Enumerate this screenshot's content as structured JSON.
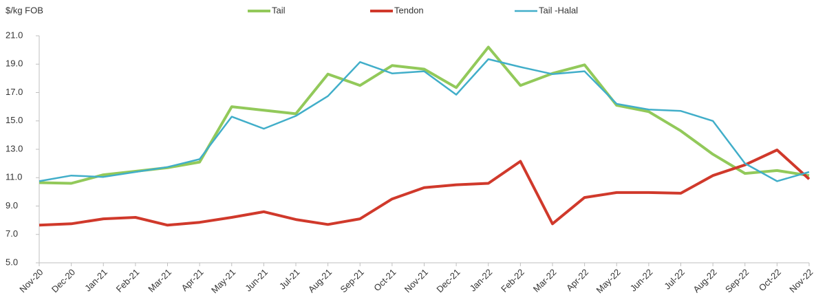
{
  "chart_data": {
    "type": "line",
    "y_label": "$/kg FOB",
    "categories": [
      "Nov-20",
      "Dec-20",
      "Jan-21",
      "Feb-21",
      "Mar-21",
      "Apr-21",
      "May-21",
      "Jun-21",
      "Jul-21",
      "Aug-21",
      "Sep-21",
      "Oct-21",
      "Nov-21",
      "Dec-21",
      "Jan-22",
      "Feb-22",
      "Mar-22",
      "Apr-22",
      "May-22",
      "Jun-22",
      "Jul-22",
      "Aug-22",
      "Sep-22",
      "Oct-22",
      "Nov-22"
    ],
    "series": [
      {
        "name": "Tail",
        "color": "#92c95a",
        "values": [
          10.65,
          10.6,
          11.2,
          11.45,
          11.7,
          12.1,
          16.0,
          15.75,
          15.5,
          18.3,
          17.5,
          18.9,
          18.65,
          17.35,
          20.2,
          17.5,
          18.35,
          18.95,
          16.1,
          15.65,
          14.3,
          12.65,
          11.3,
          11.5,
          11.15
        ]
      },
      {
        "name": "Tendon",
        "color": "#d0392b",
        "values": [
          7.65,
          7.75,
          8.1,
          8.2,
          7.65,
          7.85,
          8.2,
          8.6,
          8.05,
          7.7,
          8.1,
          9.5,
          10.3,
          10.5,
          10.6,
          12.15,
          7.75,
          9.6,
          9.95,
          9.95,
          9.9,
          11.15,
          11.9,
          12.95,
          10.9
        ]
      },
      {
        "name": "Tail -Halal",
        "color": "#41aec9",
        "values": [
          10.75,
          11.15,
          11.05,
          11.4,
          11.75,
          12.3,
          15.3,
          14.45,
          15.35,
          16.75,
          19.15,
          18.35,
          18.5,
          16.85,
          19.35,
          18.8,
          18.3,
          18.5,
          16.2,
          15.8,
          15.7,
          15.0,
          12.0,
          10.75,
          11.4
        ]
      }
    ],
    "ylim": [
      5,
      21
    ],
    "yticks": [
      {
        "value": 5,
        "label": "5.0"
      },
      {
        "value": 7,
        "label": "7.0"
      },
      {
        "value": 9,
        "label": "9.0"
      },
      {
        "value": 11,
        "label": "11.0"
      },
      {
        "value": 13,
        "label": "13.0"
      },
      {
        "value": 15,
        "label": "15.0"
      },
      {
        "value": 17,
        "label": "17.0"
      },
      {
        "value": 19,
        "label": "19.0"
      },
      {
        "value": 21,
        "label": "21.0"
      }
    ],
    "grid": false,
    "legend": "top"
  }
}
